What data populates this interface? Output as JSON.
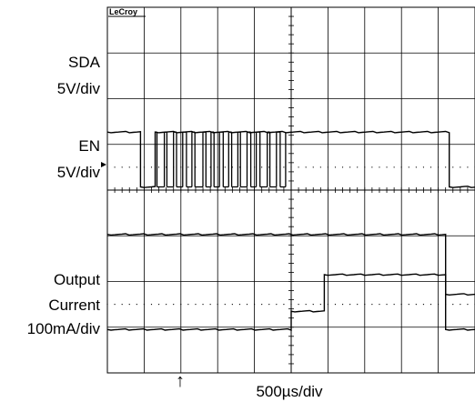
{
  "chart_data": {
    "type": "line",
    "brand": "LeCroy",
    "timebase": "500µs/div",
    "trigger_marker": "↑",
    "divisions": {
      "x": 10,
      "y": 8
    },
    "x_unit": "div",
    "y_unit": "div",
    "channel_labels": [
      {
        "id": "sda",
        "lines": [
          "SDA",
          "5V/div"
        ]
      },
      {
        "id": "en",
        "lines": [
          "EN",
          "5V/div"
        ]
      },
      {
        "id": "iout",
        "lines": [
          "Output",
          "Current",
          "100mA/div"
        ]
      }
    ],
    "series": [
      {
        "id": "sda",
        "color": "#000000",
        "high": 1.27,
        "low": 0.07,
        "points": [
          [
            0,
            1.27
          ],
          [
            0.9,
            1.27
          ],
          [
            0.9,
            0.07
          ],
          [
            1.3,
            0.07
          ],
          [
            1.3,
            1.27
          ],
          [
            9.3,
            1.27
          ],
          [
            9.3,
            0.07
          ],
          [
            10,
            0.07
          ]
        ],
        "burst": {
          "start": 1.3,
          "end": 4.9,
          "toggles": [
            1.35,
            1.55,
            1.62,
            1.8,
            1.88,
            2.05,
            2.15,
            2.3,
            2.38,
            2.6,
            2.68,
            2.82,
            2.9,
            3.05,
            3.15,
            3.3,
            3.38,
            3.55,
            3.62,
            3.8,
            3.9,
            4.05,
            4.15,
            4.35,
            4.42,
            4.6,
            4.7,
            4.85
          ]
        }
      },
      {
        "id": "en",
        "color": "#000000",
        "points": [
          [
            0,
            -0.97
          ],
          [
            9.2,
            -0.97
          ],
          [
            9.2,
            -2.28
          ],
          [
            10,
            -2.28
          ]
        ]
      },
      {
        "id": "iout",
        "color": "#000000",
        "points": [
          [
            0,
            -3.05
          ],
          [
            5.0,
            -3.05
          ],
          [
            5.0,
            -2.65
          ],
          [
            5.9,
            -2.65
          ],
          [
            5.9,
            -1.85
          ],
          [
            9.2,
            -1.85
          ],
          [
            9.2,
            -3.05
          ],
          [
            10,
            -3.05
          ]
        ]
      }
    ]
  }
}
